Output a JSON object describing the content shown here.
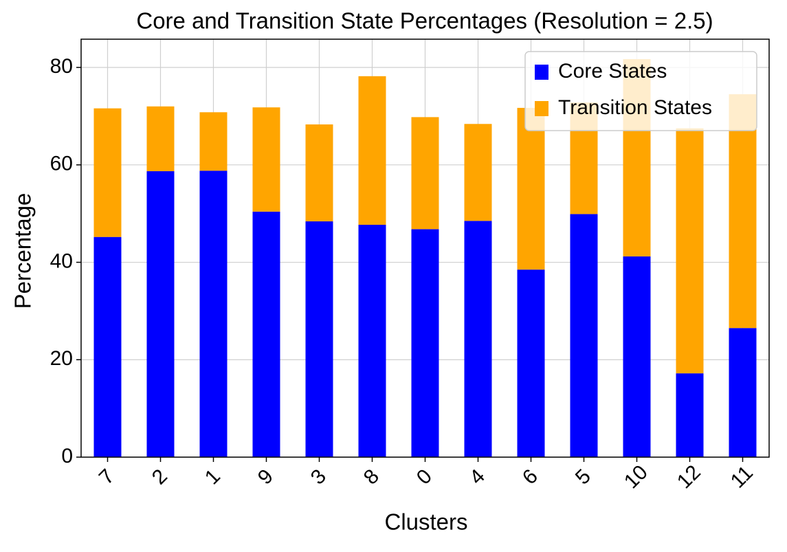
{
  "chart_data": {
    "type": "stacked_bar",
    "title": "Core and Transition State Percentages (Resolution = 2.5)",
    "x_label": "Clusters",
    "y_label": "Percentage",
    "categories": [
      "7",
      "2",
      "1",
      "9",
      "3",
      "8",
      "0",
      "4",
      "6",
      "5",
      "10",
      "12",
      "11"
    ],
    "series": [
      {
        "name": "Core States",
        "color": "#0000ff",
        "values": [
          45.2,
          58.7,
          58.8,
          50.4,
          48.4,
          47.7,
          46.8,
          48.5,
          38.5,
          49.9,
          41.2,
          17.2,
          26.5
        ]
      },
      {
        "name": "Transition States",
        "color": "#ffa500",
        "values": [
          26.4,
          13.3,
          12.0,
          21.4,
          19.9,
          30.5,
          23.0,
          19.9,
          33.2,
          22.9,
          40.5,
          50.3,
          48.0
        ]
      }
    ],
    "ylim": [
      0,
      85.8
    ],
    "yticks": [
      0,
      20,
      40,
      60,
      80
    ],
    "grid": true,
    "legend": "upper right"
  }
}
